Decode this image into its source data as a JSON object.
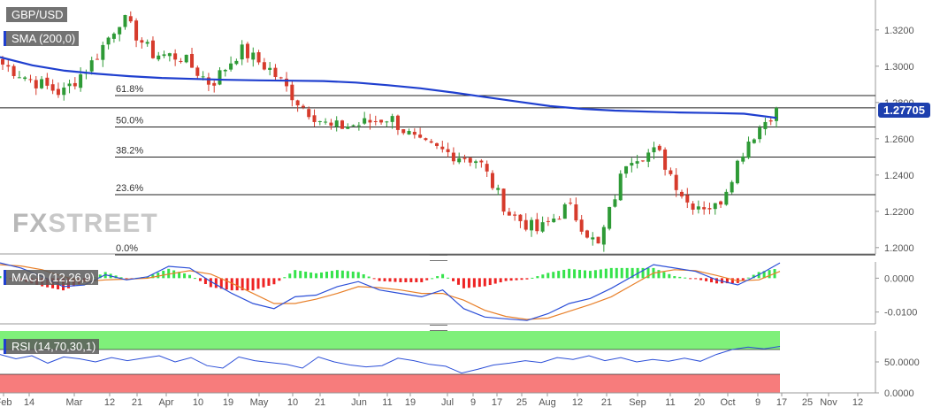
{
  "symbol": "GBP/USD",
  "indicators": {
    "sma": "SMA (200,0)",
    "macd": "MACD (12,26,9)",
    "rsi": "RSI (14,70,30,1)"
  },
  "last_price": "1.27705",
  "watermark": {
    "fx": "FX",
    "street": "STREET"
  },
  "colors": {
    "sma": "#1f3fcf",
    "up": "#2e9a36",
    "down": "#d63b2c",
    "macd_line": "#2c4fd8",
    "signal_line": "#e8802a",
    "hist_pos": "#35e34b",
    "hist_neg": "#ee2222",
    "rsi_over": "#7ff07a",
    "rsi_under": "#f77c7c",
    "badge": "#1d3fae"
  },
  "chart_data": [
    {
      "type": "candlestick",
      "title": "GBP/USD",
      "y_ticks": [
        "1.3200",
        "1.3000",
        "1.2800",
        "1.2600",
        "1.2400",
        "1.2200",
        "1.2000"
      ],
      "ylim": [
        1.1965,
        1.3365
      ],
      "fib_levels": [
        {
          "label": "61.8%",
          "value": 1.2838
        },
        {
          "label": "50.0%",
          "value": 1.2665
        },
        {
          "label": "38.2%",
          "value": 1.2499
        },
        {
          "label": "23.6%",
          "value": 1.2292
        },
        {
          "label": "0.0%",
          "value": 1.196
        }
      ],
      "fib_top_value": 1.3375,
      "current_value": 1.27705,
      "sma_200": [
        1.305,
        1.3005,
        1.2975,
        1.2958,
        1.2945,
        1.2935,
        1.293,
        1.2925,
        1.2922,
        1.292,
        1.2918,
        1.291,
        1.2895,
        1.2878,
        1.2855,
        1.283,
        1.2805,
        1.278,
        1.2765,
        1.2755,
        1.275,
        1.2745,
        1.2742,
        1.2738,
        1.2715
      ],
      "ohlc_anchor_closes": [
        1.301,
        1.292,
        1.285,
        1.302,
        1.327,
        1.307,
        1.305,
        1.29,
        1.309,
        1.298,
        1.279,
        1.266,
        1.268,
        1.272,
        1.257,
        1.252,
        1.248,
        1.219,
        1.209,
        1.223,
        1.2,
        1.25,
        1.253,
        1.225,
        1.222,
        1.258,
        1.277
      ],
      "x_ticks": [
        "Feb",
        "14",
        "Mar",
        "12",
        "21",
        "Apr",
        "10",
        "19",
        "May",
        "10",
        "21",
        "Jun",
        "11",
        "19",
        "Jul",
        "9",
        "17",
        "25",
        "Aug",
        "12",
        "21",
        "Sep",
        "11",
        "20",
        "Oct",
        "9",
        "17",
        "25",
        "Nov",
        "12"
      ]
    },
    {
      "type": "line",
      "title": "MACD (12,26,9)",
      "y_ticks": [
        "0.0000",
        "-0.0100"
      ],
      "ylim": [
        -0.0135,
        0.0048
      ],
      "series": [
        {
          "name": "MACD",
          "values": [
            0.0045,
            0.003,
            0.0005,
            -0.0025,
            -0.002,
            0.001,
            -0.0005,
            0.0004,
            0.0035,
            0.003,
            -0.001,
            -0.0045,
            -0.0075,
            -0.009,
            -0.0055,
            -0.005,
            -0.0025,
            -0.001,
            -0.0035,
            -0.0045,
            -0.0055,
            -0.0035,
            -0.009,
            -0.0115,
            -0.012,
            -0.0125,
            -0.0105,
            -0.0075,
            -0.006,
            -0.003,
            0.0005,
            0.004,
            0.003,
            0.002,
            -0.0005,
            -0.002,
            0.001,
            0.0045
          ]
        },
        {
          "name": "Signal",
          "values": [
            0.004,
            0.0036,
            0.0025,
            0.0005,
            -0.001,
            -0.0005,
            -0.0003,
            0.0,
            0.0012,
            0.0022,
            0.0012,
            -0.0015,
            -0.0045,
            -0.0075,
            -0.0075,
            -0.0062,
            -0.0045,
            -0.0025,
            -0.0028,
            -0.0035,
            -0.0045,
            -0.0045,
            -0.0065,
            -0.0095,
            -0.0113,
            -0.0122,
            -0.0118,
            -0.0098,
            -0.0078,
            -0.0055,
            -0.002,
            0.0015,
            0.0025,
            0.0022,
            0.0008,
            -0.0008,
            -0.0005,
            0.002
          ]
        }
      ]
    },
    {
      "type": "line",
      "title": "RSI (14,70,30,1)",
      "y_ticks": [
        "50.0000",
        "0.0000"
      ],
      "ylim": [
        0,
        100
      ],
      "overbought": 70,
      "oversold": 30,
      "series": [
        {
          "name": "RSI",
          "values": [
            62,
            55,
            60,
            48,
            58,
            55,
            50,
            57,
            52,
            56,
            60,
            50,
            57,
            44,
            40,
            58,
            52,
            49,
            46,
            40,
            58,
            50,
            45,
            42,
            44,
            56,
            52,
            46,
            43,
            32,
            38,
            45,
            48,
            52,
            49,
            57,
            54,
            60,
            52,
            57,
            50,
            54,
            51,
            56,
            51,
            62,
            70,
            74,
            71,
            75
          ]
        }
      ]
    }
  ]
}
